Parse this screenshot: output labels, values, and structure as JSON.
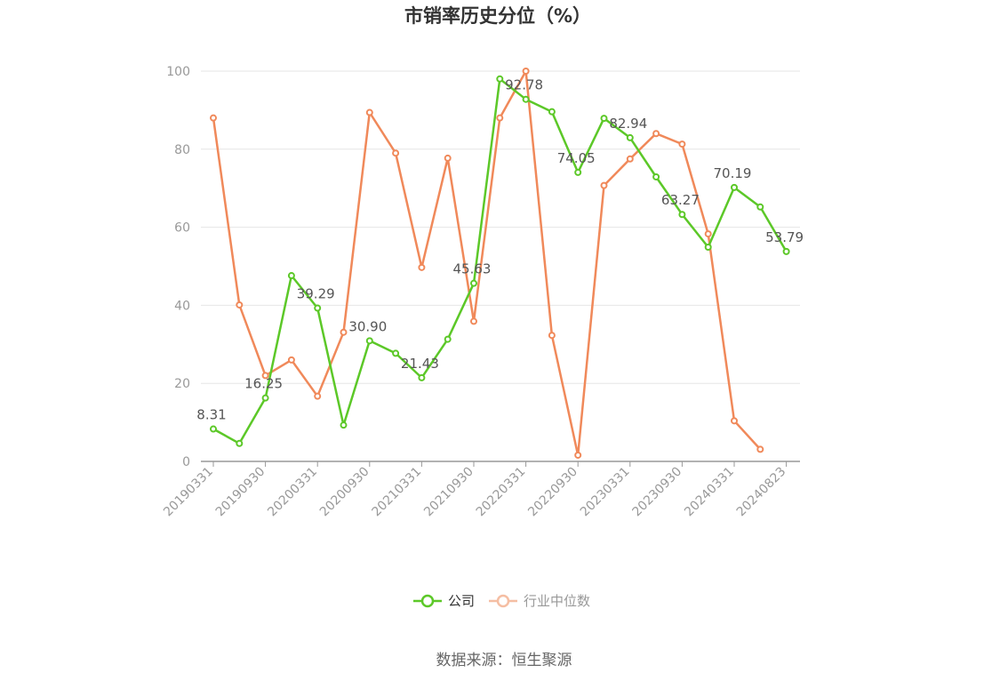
{
  "chart_data": {
    "type": "line",
    "title": "市销率历史分位（%）",
    "source": "数据来源：恒生聚源",
    "ylim": [
      0,
      100
    ],
    "y_ticks": [
      "0",
      "20",
      "40",
      "60",
      "80",
      "100"
    ],
    "x_tick_labels": [
      "20190331",
      "20190930",
      "20200331",
      "20200930",
      "20210331",
      "20210930",
      "20220331",
      "20220930",
      "20230331",
      "20230930",
      "20240331",
      "20240823"
    ],
    "x": [
      "20190331",
      "20190630",
      "20190930",
      "20191231",
      "20200331",
      "20200630",
      "20200930",
      "20201231",
      "20210331",
      "20210630",
      "20210930",
      "20211231",
      "20220331",
      "20220630",
      "20220930",
      "20221231",
      "20230331",
      "20230630",
      "20230930",
      "20231231",
      "20240331",
      "20240630",
      "20240823"
    ],
    "legend_position": "bottom-center",
    "grid": true,
    "series": [
      {
        "name": "公司",
        "color": "#5cc828",
        "values": [
          8.31,
          4.6,
          16.25,
          47.6,
          39.29,
          9.3,
          30.9,
          27.7,
          21.43,
          31.3,
          45.63,
          98.0,
          92.78,
          89.6,
          74.05,
          87.9,
          82.94,
          72.9,
          63.27,
          54.9,
          70.19,
          65.2,
          53.79
        ],
        "labels": [
          "8.31",
          "",
          "16.25",
          "",
          "39.29",
          "",
          "30.90",
          "",
          "21.43",
          "",
          "45.63",
          "",
          "92.78",
          "",
          "74.05",
          "",
          "82.94",
          "",
          "63.27",
          "",
          "70.19",
          "",
          "53.79"
        ]
      },
      {
        "name": "行业中位数",
        "color": "#f0895a",
        "values": [
          88.0,
          40.1,
          22.0,
          26.0,
          16.7,
          33.1,
          89.4,
          79.0,
          49.7,
          77.7,
          35.9,
          88.0,
          100.0,
          32.3,
          1.6,
          70.7,
          77.5,
          84.0,
          81.3,
          58.3,
          10.4,
          3.1,
          null
        ]
      }
    ]
  }
}
